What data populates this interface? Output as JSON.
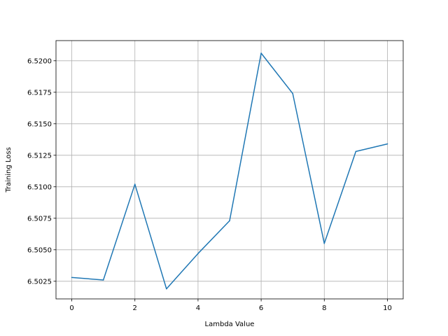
{
  "chart_data": {
    "type": "line",
    "title": "",
    "xlabel": "Lambda Value",
    "ylabel": "Training Loss",
    "xlim": [
      -0.5,
      10.5
    ],
    "ylim": [
      6.5011,
      6.5216
    ],
    "x_ticks": [
      0,
      2,
      4,
      6,
      8,
      10
    ],
    "x_tick_labels": [
      "0",
      "2",
      "4",
      "6",
      "8",
      "10"
    ],
    "y_ticks": [
      6.5025,
      6.505,
      6.5075,
      6.51,
      6.5125,
      6.515,
      6.5175,
      6.52
    ],
    "y_tick_labels": [
      "6.5025",
      "6.5050",
      "6.5075",
      "6.5100",
      "6.5125",
      "6.5150",
      "6.5175",
      "6.5200"
    ],
    "grid": true,
    "series": [
      {
        "x": [
          0,
          1,
          2,
          3,
          4,
          5,
          6,
          7,
          8,
          9,
          10
        ],
        "values": [
          6.5028,
          6.5026,
          6.5102,
          6.5019,
          6.5047,
          6.5073,
          6.5206,
          6.5174,
          6.5055,
          6.5128,
          6.5134
        ],
        "color": "#1f77b4"
      }
    ]
  }
}
